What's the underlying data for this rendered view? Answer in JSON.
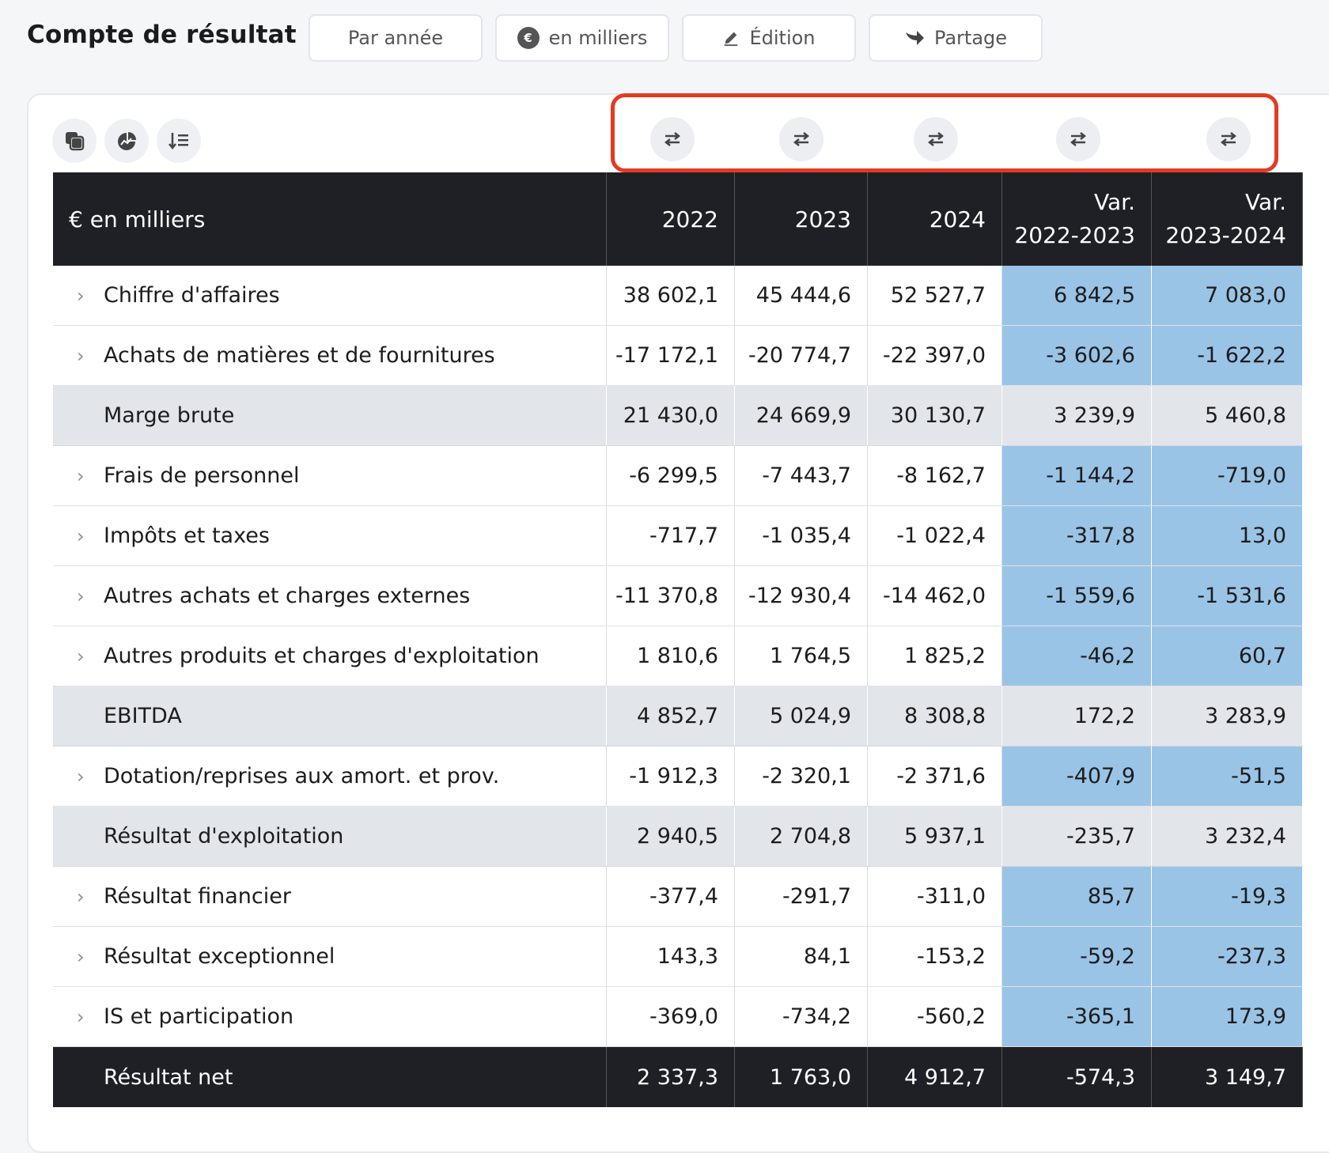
{
  "header": {
    "title": "Compte de résultat",
    "buttons": {
      "period": "Par année",
      "unit": "en milliers",
      "edit": "Édition",
      "share": "Partage"
    }
  },
  "table": {
    "corner": "€ en milliers",
    "columns": [
      "2022",
      "2023",
      "2024"
    ],
    "var_columns": [
      {
        "line1": "Var.",
        "line2": "2022-2023"
      },
      {
        "line1": "Var.",
        "line2": "2023-2024"
      }
    ],
    "rows": [
      {
        "label": "Chiffre d'affaires",
        "kind": "data",
        "values": [
          "38 602,1",
          "45 444,6",
          "52 527,7",
          "6 842,5",
          "7 083,0"
        ]
      },
      {
        "label": "Achats de matières et de fournitures",
        "kind": "data",
        "values": [
          "-17 172,1",
          "-20 774,7",
          "-22 397,0",
          "-3 602,6",
          "-1 622,2"
        ]
      },
      {
        "label": "Marge brute",
        "kind": "sub",
        "values": [
          "21 430,0",
          "24 669,9",
          "30 130,7",
          "3 239,9",
          "5 460,8"
        ]
      },
      {
        "label": "Frais de personnel",
        "kind": "data",
        "values": [
          "-6 299,5",
          "-7 443,7",
          "-8 162,7",
          "-1 144,2",
          "-719,0"
        ]
      },
      {
        "label": "Impôts et taxes",
        "kind": "data",
        "values": [
          "-717,7",
          "-1 035,4",
          "-1 022,4",
          "-317,8",
          "13,0"
        ]
      },
      {
        "label": "Autres achats et charges externes",
        "kind": "data",
        "values": [
          "-11 370,8",
          "-12 930,4",
          "-14 462,0",
          "-1 559,6",
          "-1 531,6"
        ]
      },
      {
        "label": "Autres produits et charges d'exploitation",
        "kind": "data",
        "values": [
          "1 810,6",
          "1 764,5",
          "1 825,2",
          "-46,2",
          "60,7"
        ]
      },
      {
        "label": "EBITDA",
        "kind": "sub",
        "values": [
          "4 852,7",
          "5 024,9",
          "8 308,8",
          "172,2",
          "3 283,9"
        ]
      },
      {
        "label": "Dotation/reprises aux amort. et prov.",
        "kind": "data",
        "values": [
          "-1 912,3",
          "-2 320,1",
          "-2 371,6",
          "-407,9",
          "-51,5"
        ]
      },
      {
        "label": "Résultat d'exploitation",
        "kind": "sub",
        "values": [
          "2 940,5",
          "2 704,8",
          "5 937,1",
          "-235,7",
          "3 232,4"
        ]
      },
      {
        "label": "Résultat financier",
        "kind": "data",
        "values": [
          "-377,4",
          "-291,7",
          "-311,0",
          "85,7",
          "-19,3"
        ]
      },
      {
        "label": "Résultat exceptionnel",
        "kind": "data",
        "values": [
          "143,3",
          "84,1",
          "-153,2",
          "-59,2",
          "-237,3"
        ]
      },
      {
        "label": "IS et participation",
        "kind": "data",
        "values": [
          "-369,0",
          "-734,2",
          "-560,2",
          "-365,1",
          "173,9"
        ]
      },
      {
        "label": "Résultat net",
        "kind": "tot",
        "values": [
          "2 337,3",
          "1 763,0",
          "4 912,7",
          "-574,3",
          "3 149,7"
        ]
      }
    ]
  },
  "icons": {
    "toolbar": [
      "copy-icon",
      "chart-pie-icon",
      "sort-list-icon"
    ],
    "swap": [
      "swap-icon",
      "swap-icon",
      "swap-icon",
      "swap-icon",
      "swap-icon"
    ]
  },
  "colors": {
    "header_bg": "#1f2025",
    "variation_bg": "#9ac4e6",
    "subtotal_bg": "#e2e5ea",
    "highlight_border": "#e23b22"
  }
}
